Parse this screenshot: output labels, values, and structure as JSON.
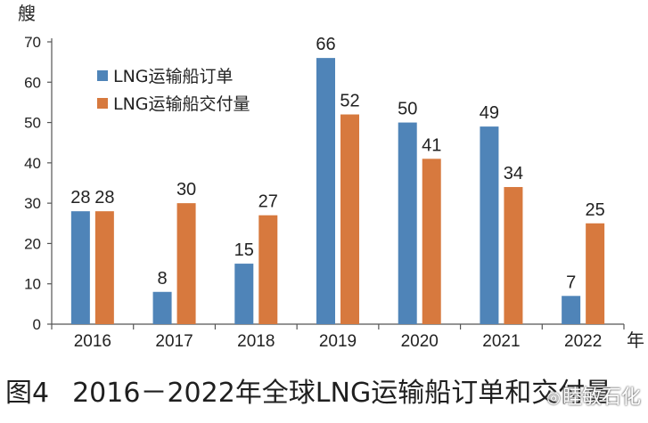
{
  "chart_data": {
    "type": "bar",
    "categories": [
      "2016",
      "2017",
      "2018",
      "2019",
      "2020",
      "2021",
      "2022"
    ],
    "series": [
      {
        "name": "LNG运输船订单",
        "values": [
          28,
          8,
          15,
          66,
          50,
          49,
          7
        ],
        "color": "#4F84B8"
      },
      {
        "name": "LNG运输船交付量",
        "values": [
          28,
          30,
          27,
          52,
          41,
          34,
          25
        ],
        "color": "#D7793E"
      }
    ],
    "ylabel": "艘",
    "xlabel": "年",
    "ylim": [
      0,
      70
    ],
    "yticks": [
      0,
      10,
      20,
      30,
      40,
      50,
      60,
      70
    ],
    "grid": false,
    "legend_position": "top-left"
  },
  "caption": {
    "figure_label": "图4",
    "text": "2016－2022年全球LNG运输船订单和交付量"
  },
  "watermark": {
    "text": "睦敏石化",
    "icon": "wechat-icon"
  }
}
